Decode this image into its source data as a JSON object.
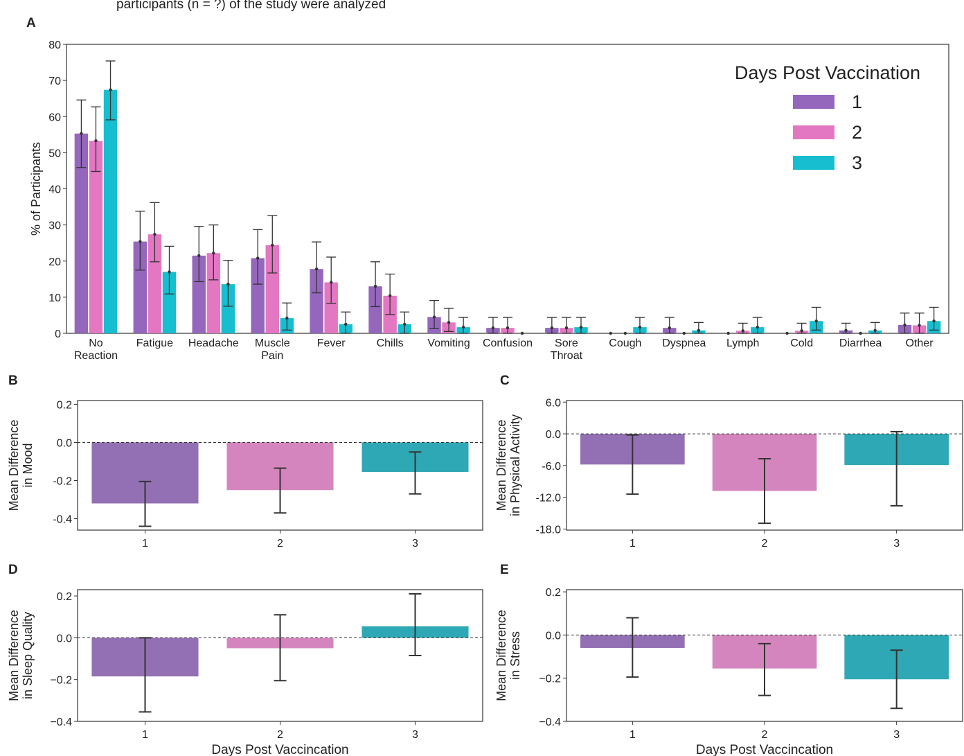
{
  "header_text": "participants (n = ?) of the study were analyzed",
  "legend": {
    "title": "Days Post Vaccination",
    "labels": [
      "1",
      "2",
      "3"
    ]
  },
  "colors": {
    "panelA": [
      "#9467bd",
      "#e377c2",
      "#17becf"
    ],
    "panelsBE": [
      "#9370b3",
      "#d585bd",
      "#2fa8b5"
    ],
    "errorbar": "#333333",
    "zero_line": "#333333"
  },
  "chart_data": [
    {
      "id": "A",
      "letter": "A",
      "type": "bar",
      "ylabel": "% of Participants",
      "ylim": [
        0,
        80
      ],
      "yticks": [
        0,
        10,
        20,
        30,
        40,
        50,
        60,
        70,
        80
      ],
      "ytick_labels": [
        "0",
        "10",
        "20",
        "30",
        "40",
        "50",
        "60",
        "70",
        "80"
      ],
      "categories": [
        [
          "No",
          "Reaction"
        ],
        [
          "Fatigue"
        ],
        [
          "Headache"
        ],
        [
          "Muscle",
          "Pain"
        ],
        [
          "Fever"
        ],
        [
          "Chills"
        ],
        [
          "Vomiting"
        ],
        [
          "Confusion"
        ],
        [
          "Sore",
          "Throat"
        ],
        [
          "Cough"
        ],
        [
          "Dyspnea"
        ],
        [
          "Lymph"
        ],
        [
          "Cold"
        ],
        [
          "Diarrhea"
        ],
        [
          "Other"
        ]
      ],
      "legend_placement": "top-right",
      "grid": false,
      "series": [
        {
          "name": "1",
          "values": [
            55.3,
            25.4,
            21.5,
            20.8,
            17.8,
            13.0,
            4.5,
            1.5,
            1.5,
            0,
            1.5,
            0,
            0,
            0.8,
            2.3
          ],
          "err_low": [
            45.9,
            17.5,
            14.3,
            13.6,
            11.2,
            7.4,
            1.3,
            0,
            0,
            0,
            0,
            0,
            0,
            0,
            0
          ],
          "err_high": [
            64.6,
            33.8,
            29.6,
            28.7,
            25.3,
            19.8,
            9.1,
            4.4,
            4.4,
            0,
            4.4,
            0,
            0,
            2.8,
            5.6
          ]
        },
        {
          "name": "2",
          "values": [
            53.3,
            27.4,
            22.2,
            24.4,
            14.1,
            10.4,
            3.0,
            1.5,
            1.5,
            0,
            0,
            0.7,
            0.7,
            0,
            2.2
          ],
          "err_low": [
            44.8,
            19.8,
            14.8,
            16.7,
            8.3,
            5.2,
            0.5,
            0,
            0,
            0,
            0,
            0,
            0,
            0,
            0
          ],
          "err_high": [
            62.7,
            36.2,
            30.0,
            32.6,
            21.1,
            16.4,
            6.9,
            4.4,
            4.4,
            0,
            0,
            2.8,
            2.8,
            0,
            5.6
          ]
        },
        {
          "name": "3",
          "values": [
            67.4,
            17.0,
            13.6,
            4.2,
            2.5,
            2.5,
            1.7,
            0,
            1.7,
            1.7,
            0.8,
            1.7,
            3.4,
            0.8,
            3.4
          ],
          "err_low": [
            59.1,
            10.9,
            7.5,
            0.9,
            0,
            0,
            0,
            0,
            0,
            0,
            0,
            0,
            0.9,
            0,
            0.9
          ],
          "err_high": [
            75.4,
            24.1,
            20.2,
            8.4,
            5.9,
            5.9,
            4.4,
            0,
            4.4,
            4.4,
            3.0,
            4.4,
            7.2,
            3.0,
            7.2
          ]
        }
      ]
    },
    {
      "id": "B",
      "letter": "B",
      "type": "bar",
      "ylabel": [
        "Mean Difference",
        "in Mood"
      ],
      "xlabel": "",
      "categories": [
        "1",
        "2",
        "3"
      ],
      "values": [
        -0.32,
        -0.25,
        -0.155
      ],
      "err_low": [
        -0.44,
        -0.37,
        -0.27
      ],
      "err_high": [
        -0.205,
        -0.135,
        -0.05
      ],
      "ylim": [
        -0.46,
        0.22
      ],
      "yticks": [
        -0.4,
        -0.2,
        0.0,
        0.2
      ],
      "ytick_labels": [
        "-0.4",
        "-0.2",
        "0.0",
        "0.2"
      ],
      "zero_line": true
    },
    {
      "id": "C",
      "letter": "C",
      "type": "bar",
      "ylabel": [
        "Mean Difference",
        "in Physical Activity"
      ],
      "xlabel": "",
      "categories": [
        "1",
        "2",
        "3"
      ],
      "values": [
        -5.8,
        -10.8,
        -5.9
      ],
      "err_low": [
        -11.4,
        -16.9,
        -13.6
      ],
      "err_high": [
        -0.2,
        -4.7,
        0.4
      ],
      "ylim": [
        -18.2,
        6.3
      ],
      "yticks": [
        -18.0,
        -12.0,
        -6.0,
        0.0,
        6.0
      ],
      "ytick_labels": [
        "-18.0",
        "-12.0",
        "-6.0",
        "0.0",
        "6.0"
      ],
      "zero_line": true
    },
    {
      "id": "D",
      "letter": "D",
      "type": "bar",
      "ylabel": [
        "Mean Difference",
        "in Sleep Quality"
      ],
      "xlabel": "Days Post Vaccincation",
      "categories": [
        "1",
        "2",
        "3"
      ],
      "values": [
        -0.185,
        -0.05,
        0.055
      ],
      "err_low": [
        -0.355,
        -0.205,
        -0.085
      ],
      "err_high": [
        0.0,
        0.11,
        0.21
      ],
      "ylim": [
        -0.4,
        0.23
      ],
      "yticks": [
        -0.4,
        -0.2,
        0.0,
        0.2
      ],
      "ytick_labels": [
        "−0.4",
        "−0.2",
        "0.0",
        "0.2"
      ],
      "zero_line": true
    },
    {
      "id": "E",
      "letter": "E",
      "type": "bar",
      "ylabel": [
        "Mean Difference",
        "in Stress"
      ],
      "xlabel": "Days Post Vaccincation",
      "categories": [
        "1",
        "2",
        "3"
      ],
      "values": [
        -0.06,
        -0.155,
        -0.205
      ],
      "err_low": [
        -0.195,
        -0.28,
        -0.34
      ],
      "err_high": [
        0.08,
        -0.04,
        -0.07
      ],
      "ylim": [
        -0.4,
        0.21
      ],
      "yticks": [
        -0.4,
        -0.2,
        0.0,
        0.2
      ],
      "ytick_labels": [
        "−0.4",
        "−0.2",
        "0.0",
        "0.2"
      ],
      "zero_line": true
    }
  ]
}
